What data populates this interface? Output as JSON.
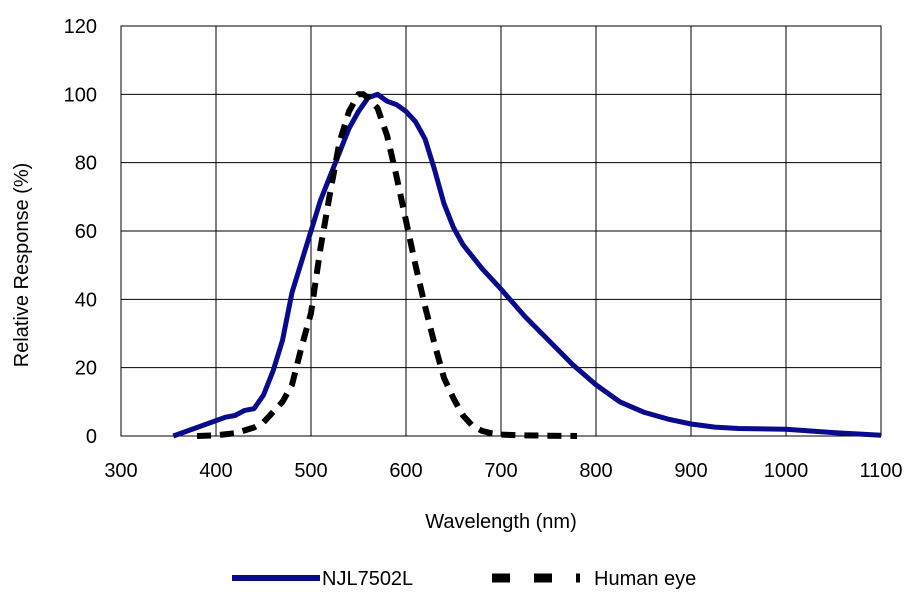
{
  "chart_data": {
    "type": "line",
    "title": "",
    "xlabel": "Wavelength (nm)",
    "ylabel": "Relative Response (%)",
    "xlim": [
      300,
      1100
    ],
    "ylim": [
      0,
      120
    ],
    "x_ticks": [
      300,
      400,
      500,
      600,
      700,
      800,
      900,
      1000,
      1100
    ],
    "y_ticks": [
      0,
      20,
      40,
      60,
      80,
      100,
      120
    ],
    "grid": true,
    "legend_position": "bottom",
    "series": [
      {
        "name": "NJL7502L",
        "color": "#0a0a8c",
        "style": "solid",
        "points": [
          [
            355,
            0
          ],
          [
            380,
            2.5
          ],
          [
            400,
            4.5
          ],
          [
            410,
            5.5
          ],
          [
            420,
            6
          ],
          [
            430,
            7.5
          ],
          [
            440,
            8
          ],
          [
            450,
            12
          ],
          [
            460,
            19
          ],
          [
            470,
            28
          ],
          [
            480,
            42
          ],
          [
            490,
            51
          ],
          [
            500,
            60
          ],
          [
            510,
            69
          ],
          [
            520,
            76
          ],
          [
            530,
            83
          ],
          [
            540,
            90
          ],
          [
            550,
            95
          ],
          [
            560,
            99
          ],
          [
            570,
            100
          ],
          [
            580,
            98
          ],
          [
            590,
            97
          ],
          [
            600,
            95
          ],
          [
            610,
            92
          ],
          [
            620,
            87
          ],
          [
            630,
            78
          ],
          [
            640,
            68
          ],
          [
            650,
            61
          ],
          [
            660,
            56
          ],
          [
            680,
            49
          ],
          [
            700,
            43
          ],
          [
            725,
            35
          ],
          [
            750,
            28
          ],
          [
            775,
            21
          ],
          [
            800,
            15
          ],
          [
            825,
            10
          ],
          [
            850,
            7
          ],
          [
            875,
            5
          ],
          [
            900,
            3.5
          ],
          [
            925,
            2.6
          ],
          [
            950,
            2.2
          ],
          [
            1000,
            2
          ],
          [
            1050,
            1
          ],
          [
            1100,
            0.2
          ]
        ]
      },
      {
        "name": "Human eye",
        "color": "#000000",
        "style": "dashed",
        "points": [
          [
            380,
            0
          ],
          [
            400,
            0.2
          ],
          [
            420,
            0.8
          ],
          [
            440,
            2.5
          ],
          [
            450,
            4
          ],
          [
            460,
            7
          ],
          [
            470,
            10
          ],
          [
            480,
            15
          ],
          [
            490,
            26
          ],
          [
            500,
            36
          ],
          [
            510,
            55
          ],
          [
            520,
            71
          ],
          [
            530,
            86
          ],
          [
            540,
            95
          ],
          [
            550,
            100
          ],
          [
            555,
            100
          ],
          [
            560,
            99
          ],
          [
            570,
            96
          ],
          [
            580,
            88
          ],
          [
            590,
            76
          ],
          [
            600,
            63
          ],
          [
            610,
            50
          ],
          [
            620,
            38
          ],
          [
            630,
            27
          ],
          [
            640,
            17
          ],
          [
            650,
            11
          ],
          [
            660,
            6
          ],
          [
            670,
            3
          ],
          [
            680,
            1.5
          ],
          [
            690,
            0.8
          ],
          [
            700,
            0.4
          ],
          [
            720,
            0.2
          ],
          [
            750,
            0.1
          ],
          [
            780,
            0
          ]
        ]
      }
    ]
  }
}
